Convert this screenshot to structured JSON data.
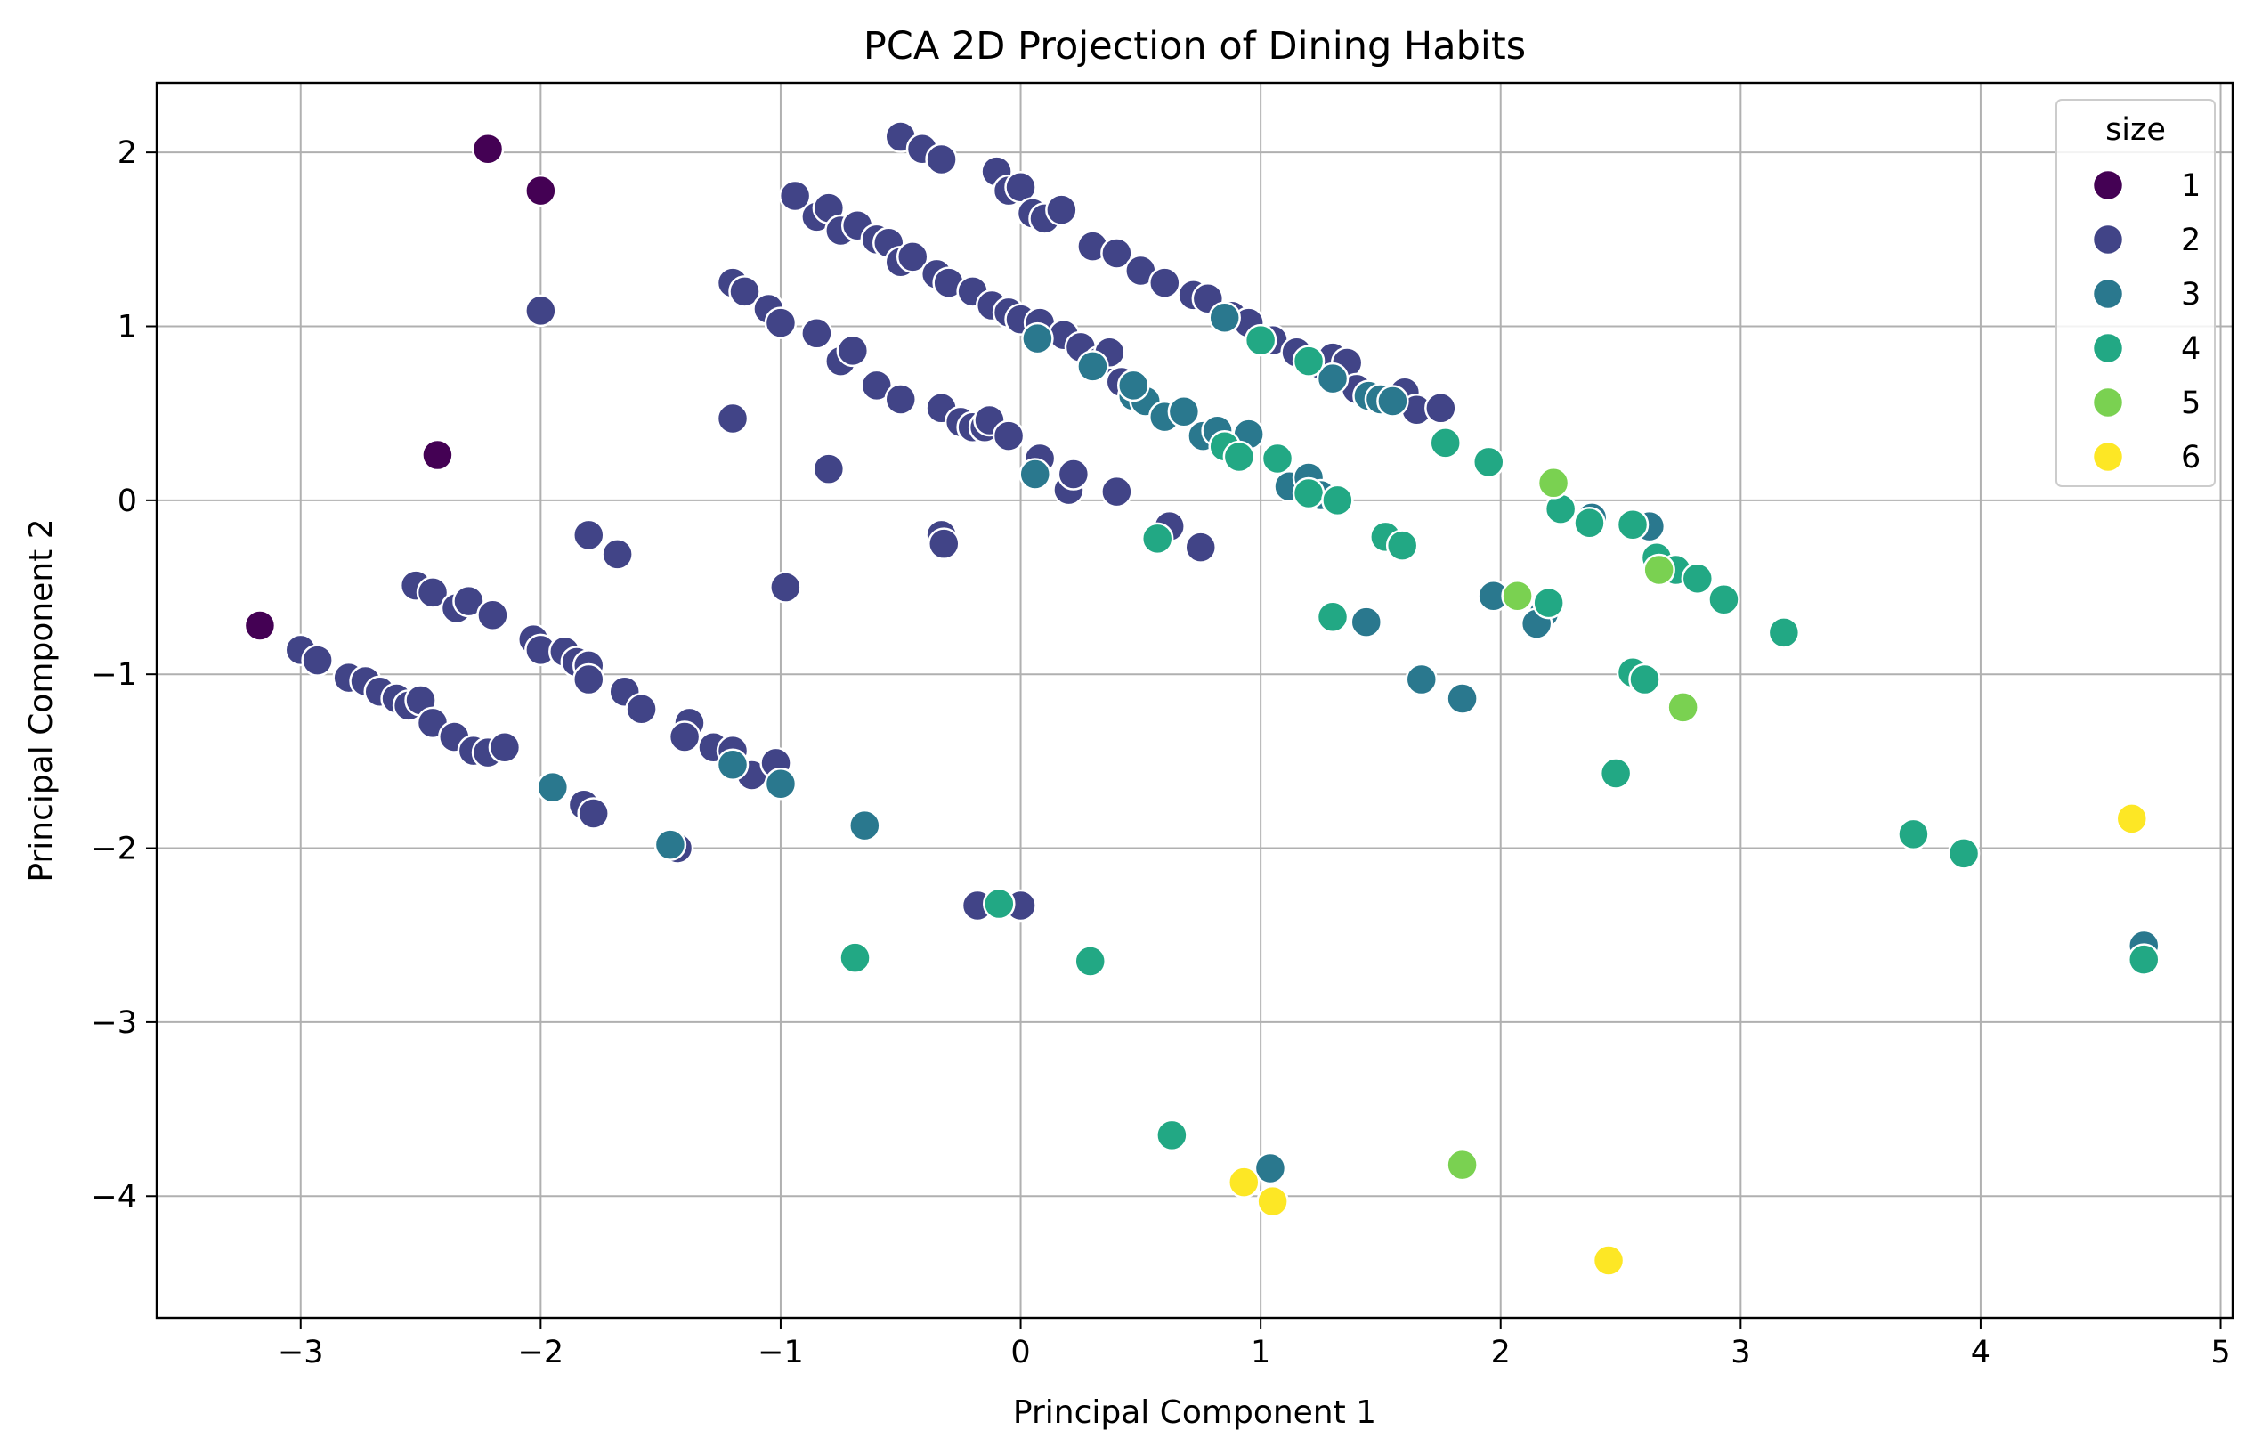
{
  "chart_data": {
    "type": "scatter",
    "title": "PCA 2D Projection of Dining Habits",
    "xlabel": "Principal Component 1",
    "ylabel": "Principal Component 2",
    "xlim": [
      -3.6,
      5.05
    ],
    "ylim": [
      -4.7,
      2.4
    ],
    "x_ticks": [
      -3,
      -2,
      -1,
      0,
      1,
      2,
      3,
      4,
      5
    ],
    "y_ticks": [
      2,
      1,
      0,
      -1,
      -2,
      -3,
      -4
    ],
    "x_tick_labels": [
      "−3",
      "−2",
      "−1",
      "0",
      "1",
      "2",
      "3",
      "4",
      "5"
    ],
    "y_tick_labels": [
      "2",
      "1",
      "0",
      "−1",
      "−2",
      "−3",
      "−4"
    ],
    "grid": true,
    "legend": {
      "title": "size",
      "placement": "top-right",
      "entries": [
        {
          "label": "1",
          "color": "#440154"
        },
        {
          "label": "2",
          "color": "#414487"
        },
        {
          "label": "3",
          "color": "#2a788e"
        },
        {
          "label": "4",
          "color": "#22a884"
        },
        {
          "label": "5",
          "color": "#7ad151"
        },
        {
          "label": "6",
          "color": "#fde725"
        }
      ]
    },
    "series": [
      {
        "name": "1",
        "color": "#440154",
        "points": [
          [
            -2.22,
            2.02
          ],
          [
            -2.0,
            1.78
          ],
          [
            -2.43,
            0.26
          ],
          [
            -3.17,
            -0.72
          ]
        ]
      },
      {
        "name": "2",
        "color": "#414487",
        "points": [
          [
            -0.5,
            2.09
          ],
          [
            -0.41,
            2.02
          ],
          [
            -0.33,
            1.96
          ],
          [
            -0.1,
            1.89
          ],
          [
            -0.05,
            1.78
          ],
          [
            0.0,
            1.8
          ],
          [
            0.05,
            1.65
          ],
          [
            0.1,
            1.62
          ],
          [
            0.17,
            1.67
          ],
          [
            -0.94,
            1.75
          ],
          [
            -0.85,
            1.63
          ],
          [
            -0.8,
            1.68
          ],
          [
            -0.75,
            1.55
          ],
          [
            -0.68,
            1.58
          ],
          [
            -0.6,
            1.5
          ],
          [
            -0.55,
            1.48
          ],
          [
            -0.5,
            1.37
          ],
          [
            -0.45,
            1.4
          ],
          [
            -0.35,
            1.3
          ],
          [
            -0.3,
            1.25
          ],
          [
            -0.2,
            1.2
          ],
          [
            -0.12,
            1.12
          ],
          [
            -0.05,
            1.08
          ],
          [
            0.0,
            1.04
          ],
          [
            0.08,
            1.02
          ],
          [
            0.18,
            0.95
          ],
          [
            0.25,
            0.88
          ],
          [
            0.33,
            0.8
          ],
          [
            0.37,
            0.85
          ],
          [
            0.42,
            0.68
          ],
          [
            0.48,
            0.64
          ],
          [
            0.3,
            1.46
          ],
          [
            0.4,
            1.42
          ],
          [
            0.5,
            1.32
          ],
          [
            0.6,
            1.25
          ],
          [
            0.72,
            1.18
          ],
          [
            0.78,
            1.16
          ],
          [
            0.88,
            1.06
          ],
          [
            0.95,
            1.02
          ],
          [
            1.05,
            0.92
          ],
          [
            1.15,
            0.85
          ],
          [
            1.25,
            0.78
          ],
          [
            1.3,
            0.82
          ],
          [
            1.36,
            0.79
          ],
          [
            1.4,
            0.64
          ],
          [
            1.6,
            0.62
          ],
          [
            1.65,
            0.52
          ],
          [
            1.75,
            0.53
          ],
          [
            -1.2,
            1.25
          ],
          [
            -1.15,
            1.2
          ],
          [
            -1.05,
            1.1
          ],
          [
            -1.0,
            1.02
          ],
          [
            -0.85,
            0.96
          ],
          [
            -0.75,
            0.8
          ],
          [
            -0.7,
            0.86
          ],
          [
            -0.6,
            0.66
          ],
          [
            -0.5,
            0.58
          ],
          [
            -0.33,
            0.53
          ],
          [
            -0.25,
            0.45
          ],
          [
            -0.2,
            0.42
          ],
          [
            -0.15,
            0.42
          ],
          [
            -0.13,
            0.46
          ],
          [
            -0.05,
            0.37
          ],
          [
            0.08,
            0.24
          ],
          [
            0.2,
            0.06
          ],
          [
            0.22,
            0.15
          ],
          [
            0.4,
            0.05
          ],
          [
            -1.2,
            0.47
          ],
          [
            -0.8,
            0.18
          ],
          [
            -2.0,
            1.09
          ],
          [
            -1.8,
            -0.2
          ],
          [
            -1.68,
            -0.31
          ],
          [
            -0.98,
            -0.5
          ],
          [
            -0.33,
            -0.2
          ],
          [
            -0.32,
            -0.25
          ],
          [
            0.62,
            -0.15
          ],
          [
            0.75,
            -0.27
          ],
          [
            -2.52,
            -0.49
          ],
          [
            -2.45,
            -0.53
          ],
          [
            -2.35,
            -0.62
          ],
          [
            -2.3,
            -0.58
          ],
          [
            -2.2,
            -0.66
          ],
          [
            -2.03,
            -0.8
          ],
          [
            -2.0,
            -0.86
          ],
          [
            -1.9,
            -0.87
          ],
          [
            -1.85,
            -0.93
          ],
          [
            -1.8,
            -0.95
          ],
          [
            -1.8,
            -1.03
          ],
          [
            -1.65,
            -1.1
          ],
          [
            -1.58,
            -1.2
          ],
          [
            -1.38,
            -1.28
          ],
          [
            -1.4,
            -1.36
          ],
          [
            -1.28,
            -1.42
          ],
          [
            -1.2,
            -1.44
          ],
          [
            -1.12,
            -1.58
          ],
          [
            -1.02,
            -1.51
          ],
          [
            -3.0,
            -0.86
          ],
          [
            -2.93,
            -0.92
          ],
          [
            -2.8,
            -1.02
          ],
          [
            -2.73,
            -1.04
          ],
          [
            -2.67,
            -1.1
          ],
          [
            -2.6,
            -1.14
          ],
          [
            -2.55,
            -1.18
          ],
          [
            -2.5,
            -1.15
          ],
          [
            -2.45,
            -1.28
          ],
          [
            -2.36,
            -1.36
          ],
          [
            -2.28,
            -1.44
          ],
          [
            -2.22,
            -1.45
          ],
          [
            -2.15,
            -1.42
          ],
          [
            -1.82,
            -1.75
          ],
          [
            -1.78,
            -1.8
          ],
          [
            -1.43,
            -2.0
          ],
          [
            -0.18,
            -2.33
          ],
          [
            0.0,
            -2.33
          ]
        ]
      },
      {
        "name": "3",
        "color": "#2a788e",
        "points": [
          [
            0.07,
            0.93
          ],
          [
            0.3,
            0.77
          ],
          [
            0.47,
            0.6
          ],
          [
            0.52,
            0.57
          ],
          [
            0.47,
            0.66
          ],
          [
            0.6,
            0.48
          ],
          [
            0.68,
            0.51
          ],
          [
            0.76,
            0.37
          ],
          [
            0.82,
            0.4
          ],
          [
            0.85,
            1.05
          ],
          [
            0.95,
            0.38
          ],
          [
            1.3,
            0.7
          ],
          [
            1.45,
            0.6
          ],
          [
            1.5,
            0.58
          ],
          [
            1.55,
            0.57
          ],
          [
            0.06,
            0.15
          ],
          [
            1.12,
            0.08
          ],
          [
            1.2,
            0.13
          ],
          [
            1.25,
            0.03
          ],
          [
            2.38,
            -0.1
          ],
          [
            2.62,
            -0.15
          ],
          [
            1.97,
            -0.55
          ],
          [
            2.18,
            -0.65
          ],
          [
            2.15,
            -0.71
          ],
          [
            1.44,
            -0.7
          ],
          [
            1.67,
            -1.03
          ],
          [
            1.84,
            -1.14
          ],
          [
            -1.95,
            -1.65
          ],
          [
            -1.2,
            -1.52
          ],
          [
            -1.0,
            -1.63
          ],
          [
            -0.65,
            -1.87
          ],
          [
            -1.46,
            -1.98
          ],
          [
            1.04,
            -3.84
          ],
          [
            4.68,
            -2.56
          ]
        ]
      },
      {
        "name": "4",
        "color": "#22a884",
        "points": [
          [
            1.0,
            0.92
          ],
          [
            1.2,
            0.8
          ],
          [
            1.77,
            0.33
          ],
          [
            1.95,
            0.22
          ],
          [
            1.07,
            0.24
          ],
          [
            0.85,
            0.31
          ],
          [
            0.91,
            0.25
          ],
          [
            1.2,
            0.04
          ],
          [
            1.32,
            0.0
          ],
          [
            0.57,
            -0.22
          ],
          [
            2.25,
            -0.05
          ],
          [
            2.37,
            -0.13
          ],
          [
            2.55,
            -0.14
          ],
          [
            2.65,
            -0.33
          ],
          [
            2.73,
            -0.4
          ],
          [
            2.82,
            -0.45
          ],
          [
            2.93,
            -0.57
          ],
          [
            3.18,
            -0.76
          ],
          [
            1.52,
            -0.21
          ],
          [
            1.59,
            -0.26
          ],
          [
            1.3,
            -0.67
          ],
          [
            2.2,
            -0.59
          ],
          [
            2.55,
            -0.99
          ],
          [
            2.6,
            -1.03
          ],
          [
            2.48,
            -1.57
          ],
          [
            3.72,
            -1.92
          ],
          [
            3.93,
            -2.03
          ],
          [
            -0.09,
            -2.32
          ],
          [
            -0.69,
            -2.63
          ],
          [
            0.29,
            -2.65
          ],
          [
            0.63,
            -3.65
          ],
          [
            4.68,
            -2.64
          ]
        ]
      },
      {
        "name": "5",
        "color": "#7ad151",
        "points": [
          [
            2.22,
            0.1
          ],
          [
            2.07,
            -0.55
          ],
          [
            2.66,
            -0.4
          ],
          [
            2.76,
            -1.19
          ],
          [
            1.84,
            -3.82
          ]
        ]
      },
      {
        "name": "6",
        "color": "#fde725",
        "points": [
          [
            4.63,
            -1.83
          ],
          [
            0.93,
            -3.92
          ],
          [
            1.05,
            -4.03
          ],
          [
            2.45,
            -4.37
          ]
        ]
      }
    ]
  }
}
